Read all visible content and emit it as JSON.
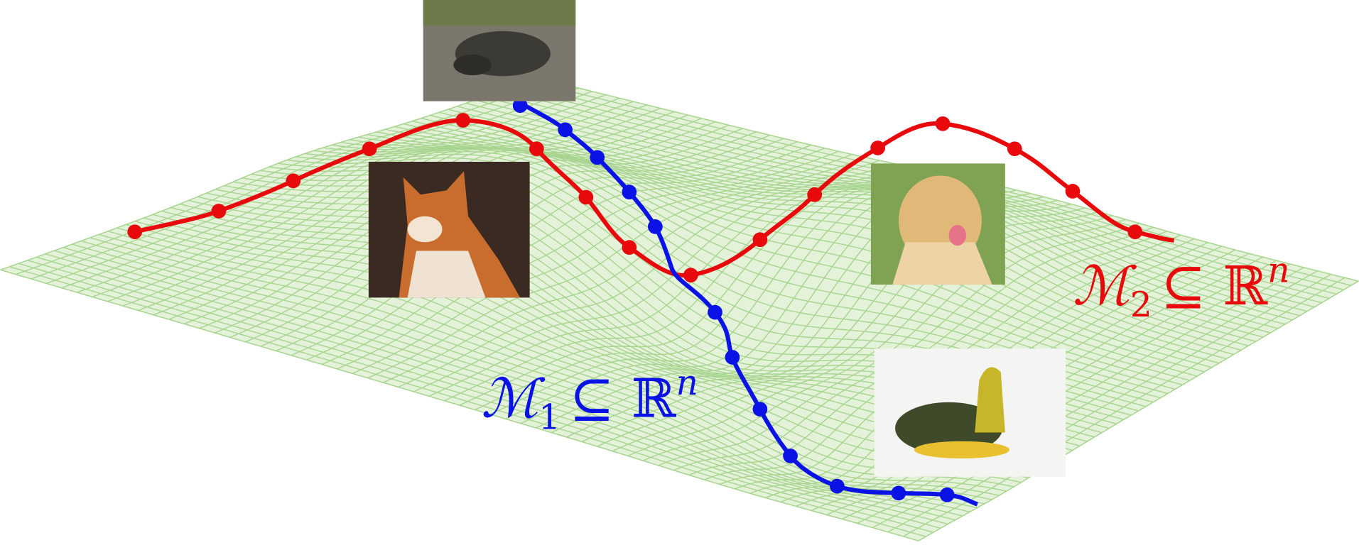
{
  "labels": [
    {
      "symbol": "ℳ",
      "subscript": "1",
      "relation": "⊆ ℝ",
      "superscript": "n"
    },
    {
      "symbol": "ℳ",
      "subscript": "2",
      "relation": "⊆ ℝ",
      "superscript": "n"
    }
  ]
}
